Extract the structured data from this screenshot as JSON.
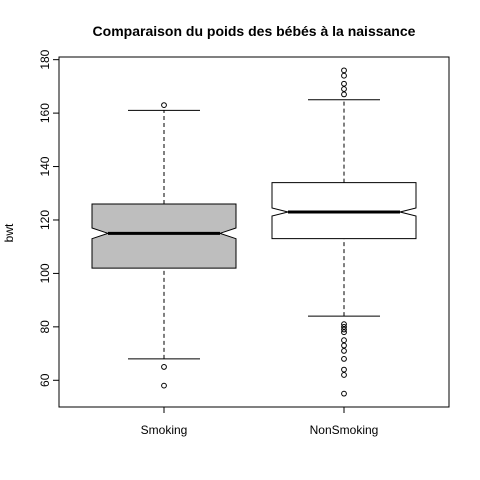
{
  "chart_data": {
    "type": "boxplot",
    "title": "Comparaison du poids des bébés à la naissance",
    "xlabel": "",
    "ylabel": "bwt",
    "ylim": [
      50,
      181
    ],
    "yticks": [
      60,
      80,
      100,
      120,
      140,
      160,
      180
    ],
    "notched": true,
    "grid": false,
    "series": [
      {
        "name": "Smoking",
        "fill": "#bebebe",
        "whisker_low": 68,
        "q1": 102,
        "median": 115,
        "q3": 126,
        "whisker_high": 161,
        "notch_low": 113,
        "notch_high": 117,
        "outliers": [
          58,
          65,
          163
        ]
      },
      {
        "name": "NonSmoking",
        "fill": "#ffffff",
        "whisker_low": 84,
        "q1": 113,
        "median": 123,
        "q3": 134,
        "whisker_high": 165,
        "notch_low": 121.5,
        "notch_high": 124.5,
        "outliers": [
          55,
          62,
          64,
          68,
          71,
          73,
          75,
          78,
          79,
          80,
          81,
          167,
          169,
          171,
          174,
          176
        ]
      }
    ]
  }
}
